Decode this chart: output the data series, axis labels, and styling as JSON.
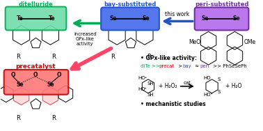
{
  "bg_color": "#ffffff",
  "color_ditelluride": "#00aa55",
  "color_bay": "#2255cc",
  "color_peri": "#7030a0",
  "color_precat": "#dd0000",
  "color_green_box_face": "#70ddaa",
  "color_green_box_edge": "#00aa55",
  "color_blue_box_face": "#5577ee",
  "color_blue_box_edge": "#2255cc",
  "color_purple_box_face": "#bb77ee",
  "color_purple_box_edge": "#7030a0",
  "color_red_box_face": "#ff7777",
  "color_red_box_edge": "#cc0000",
  "label_ditelluride": "ditelluride",
  "label_bay": "bay-substituted",
  "label_peri": "peri-substituted",
  "label_precat": "precatalyst",
  "label_thiswork": "this work",
  "label_increased": "increased\nGPx-like\nactivity",
  "label_gpx": "• GPx-like activity:",
  "label_mechanistic": "• mechanistic studies"
}
